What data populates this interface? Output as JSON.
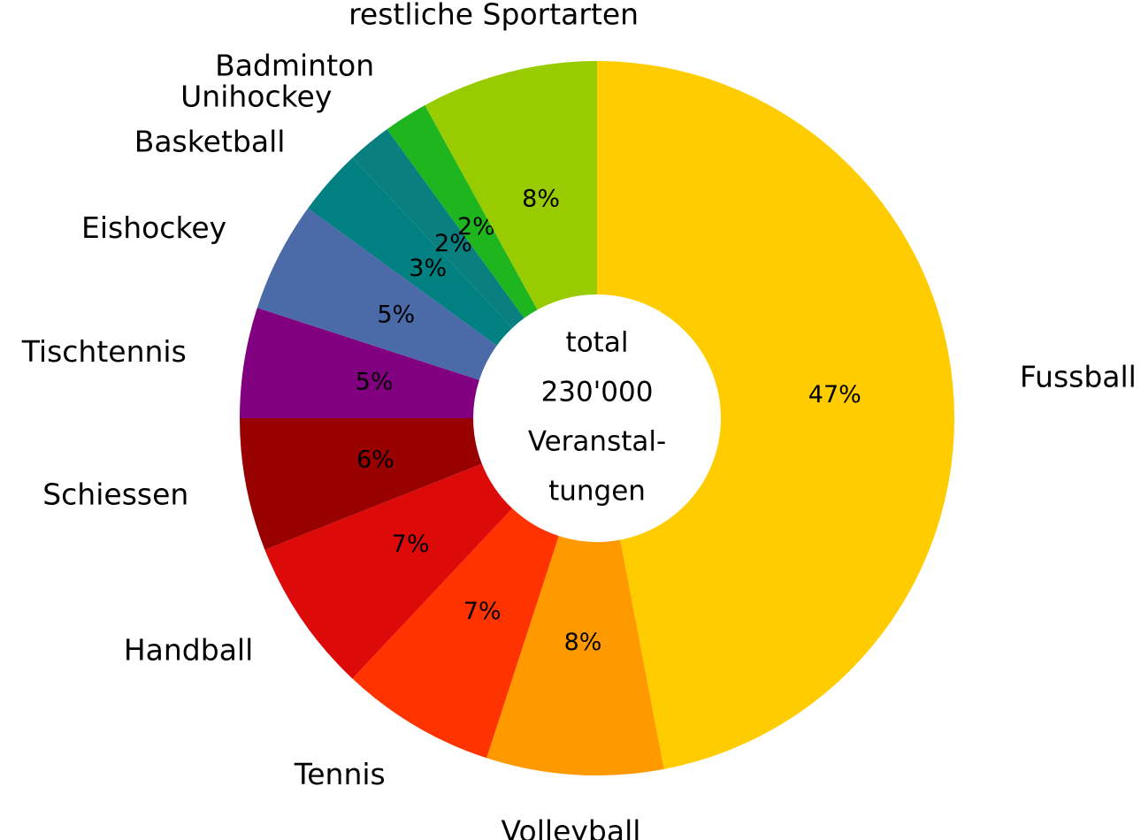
{
  "chart_data": {
    "type": "donut",
    "categories": [
      "Fussball",
      "Volleyball",
      "Tennis",
      "Handball",
      "Schiessen",
      "Tischtennis",
      "Eishockey",
      "Basketball",
      "Unihockey",
      "Badminton",
      "restliche Sportarten"
    ],
    "values": [
      47,
      8,
      7,
      7,
      6,
      5,
      5,
      3,
      2,
      2,
      8
    ],
    "value_labels": [
      "47%",
      "8%",
      "7%",
      "7%",
      "6%",
      "5%",
      "5%",
      "3%",
      "2%",
      "2%",
      "8%"
    ],
    "colors": [
      "#ffcc00",
      "#ff9900",
      "#ff3300",
      "#dd0a0a",
      "#990000",
      "#800080",
      "#4a6aa8",
      "#008080",
      "#0a7f80",
      "#1fb51f",
      "#99cc00"
    ],
    "center_text": [
      "total",
      "230'000",
      "Veranstal-",
      "tungen"
    ]
  }
}
